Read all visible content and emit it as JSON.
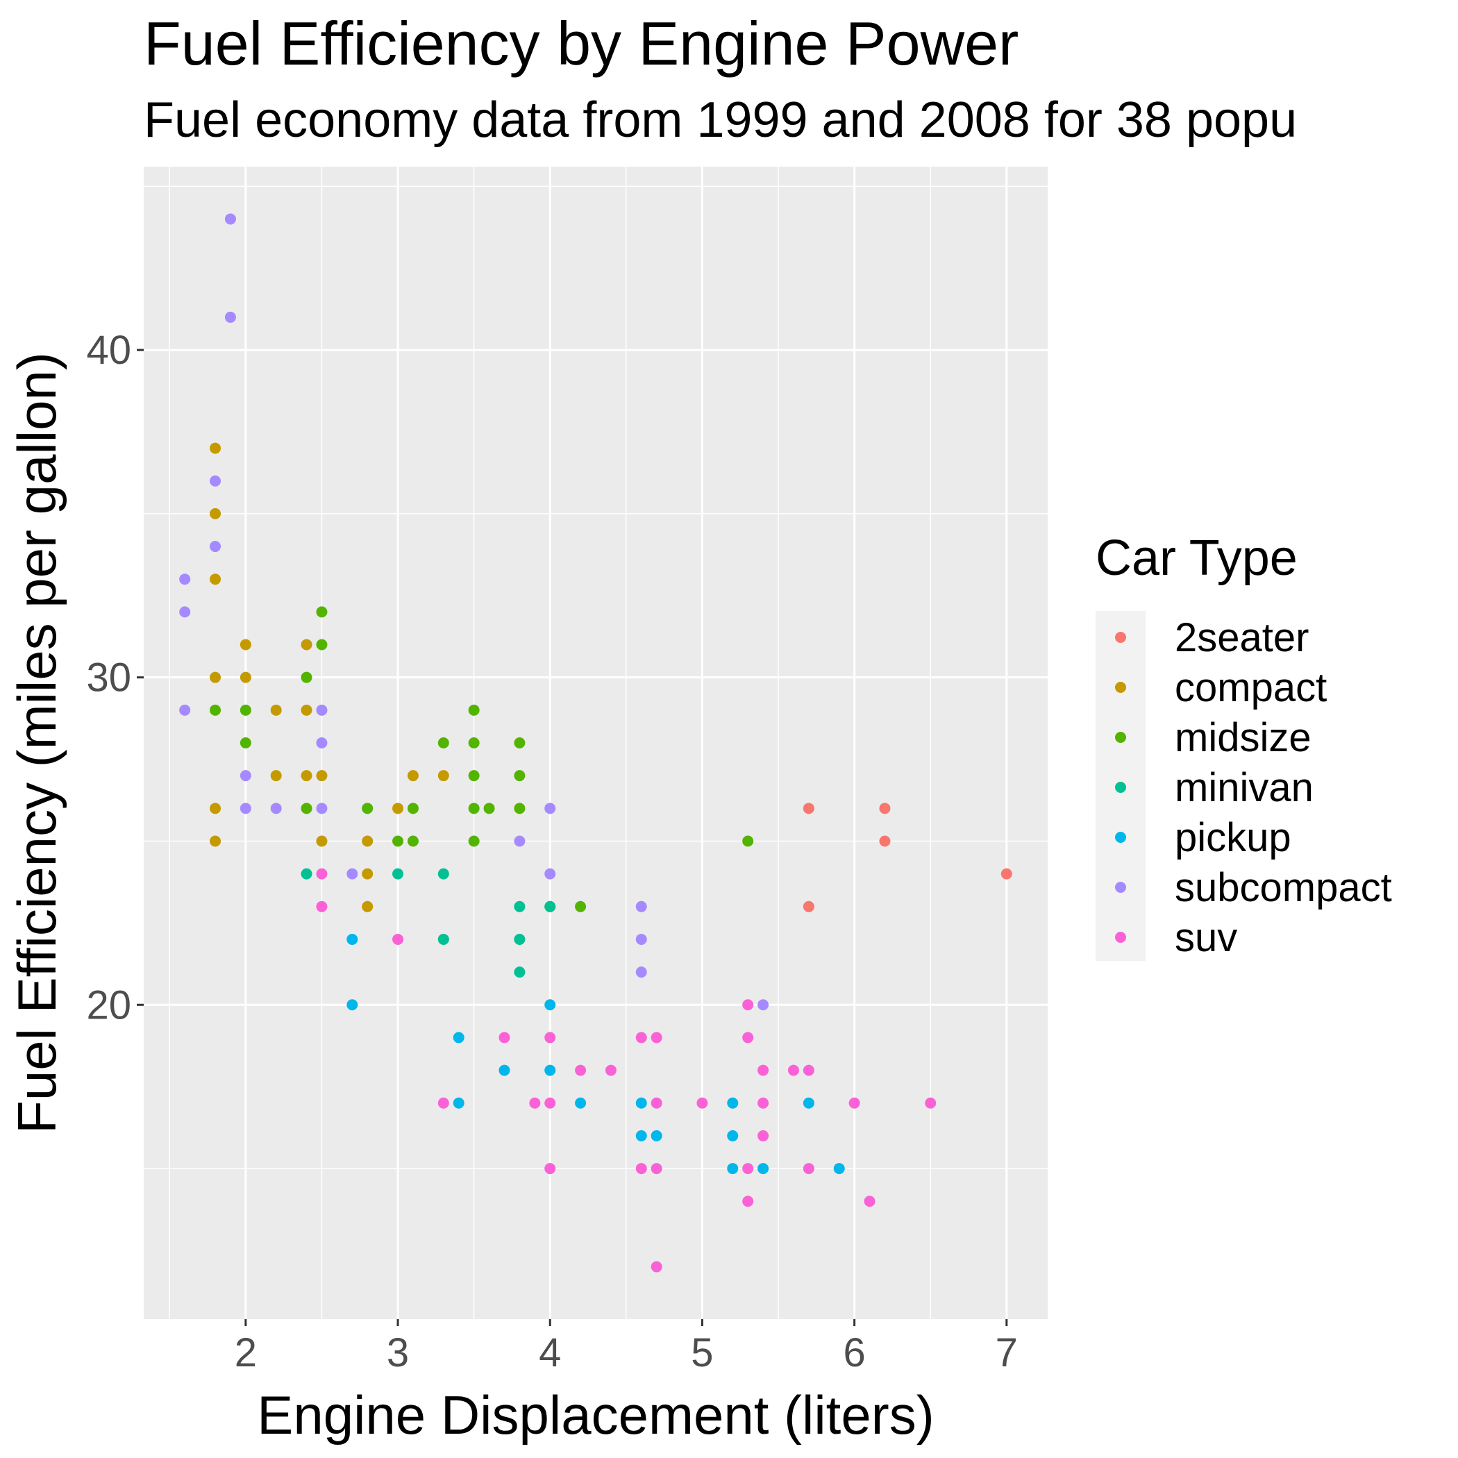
{
  "chart_data": {
    "type": "scatter",
    "title": "Fuel Efficiency by Engine Power",
    "subtitle": "Fuel economy data from 1999 and 2008 for 38 popu",
    "xlabel": "Engine Displacement (liters)",
    "ylabel": "Fuel Efficiency (miles per gallon)",
    "xlim": [
      1.33,
      7.27
    ],
    "ylim": [
      10.4,
      45.6
    ],
    "x_ticks": [
      2,
      3,
      4,
      5,
      6,
      7
    ],
    "y_ticks": [
      20,
      30,
      40
    ],
    "grid": true,
    "legend_title": "Car Type",
    "legend_position": "right",
    "series": [
      {
        "name": "2seater",
        "color": "#F8766D",
        "points": [
          [
            5.7,
            26
          ],
          [
            5.7,
            23
          ],
          [
            6.2,
            26
          ],
          [
            6.2,
            25
          ],
          [
            7.0,
            24
          ]
        ]
      },
      {
        "name": "compact",
        "color": "#C49A00",
        "points": [
          [
            1.8,
            37
          ],
          [
            1.8,
            35
          ],
          [
            1.8,
            33
          ],
          [
            1.8,
            30
          ],
          [
            1.8,
            26
          ],
          [
            1.8,
            25
          ],
          [
            2.0,
            31
          ],
          [
            2.0,
            30
          ],
          [
            2.2,
            29
          ],
          [
            2.2,
            27
          ],
          [
            2.4,
            31
          ],
          [
            2.4,
            29
          ],
          [
            2.4,
            27
          ],
          [
            2.5,
            27
          ],
          [
            2.5,
            25
          ],
          [
            2.8,
            25
          ],
          [
            2.8,
            24
          ],
          [
            2.8,
            23
          ],
          [
            3.0,
            26
          ],
          [
            3.1,
            27
          ],
          [
            3.3,
            27
          ]
        ]
      },
      {
        "name": "midsize",
        "color": "#53B400",
        "points": [
          [
            1.8,
            29
          ],
          [
            2.0,
            29
          ],
          [
            2.0,
            28
          ],
          [
            2.4,
            30
          ],
          [
            2.4,
            26
          ],
          [
            2.5,
            32
          ],
          [
            2.5,
            31
          ],
          [
            2.8,
            26
          ],
          [
            3.0,
            25
          ],
          [
            3.1,
            26
          ],
          [
            3.1,
            25
          ],
          [
            3.3,
            28
          ],
          [
            3.5,
            29
          ],
          [
            3.5,
            28
          ],
          [
            3.5,
            27
          ],
          [
            3.5,
            26
          ],
          [
            3.5,
            25
          ],
          [
            3.6,
            26
          ],
          [
            3.8,
            28
          ],
          [
            3.8,
            27
          ],
          [
            3.8,
            26
          ],
          [
            4.0,
            23
          ],
          [
            4.2,
            23
          ],
          [
            5.3,
            25
          ]
        ]
      },
      {
        "name": "minivan",
        "color": "#00C094",
        "points": [
          [
            2.4,
            24
          ],
          [
            3.0,
            24
          ],
          [
            3.3,
            24
          ],
          [
            3.3,
            22
          ],
          [
            3.8,
            23
          ],
          [
            3.8,
            22
          ],
          [
            3.8,
            21
          ],
          [
            4.0,
            23
          ]
        ]
      },
      {
        "name": "pickup",
        "color": "#00B6EB",
        "points": [
          [
            2.7,
            22
          ],
          [
            2.7,
            20
          ],
          [
            3.4,
            19
          ],
          [
            3.4,
            17
          ],
          [
            3.7,
            18
          ],
          [
            4.0,
            20
          ],
          [
            4.0,
            18
          ],
          [
            4.2,
            17
          ],
          [
            4.6,
            17
          ],
          [
            4.6,
            16
          ],
          [
            4.7,
            16
          ],
          [
            5.2,
            17
          ],
          [
            5.2,
            16
          ],
          [
            5.2,
            15
          ],
          [
            5.4,
            15
          ],
          [
            5.7,
            17
          ],
          [
            5.9,
            15
          ]
        ]
      },
      {
        "name": "subcompact",
        "color": "#A58AFF",
        "points": [
          [
            1.6,
            33
          ],
          [
            1.6,
            32
          ],
          [
            1.6,
            29
          ],
          [
            1.8,
            36
          ],
          [
            1.8,
            34
          ],
          [
            1.9,
            44
          ],
          [
            1.9,
            41
          ],
          [
            2.0,
            27
          ],
          [
            2.0,
            26
          ],
          [
            2.2,
            26
          ],
          [
            2.5,
            29
          ],
          [
            2.5,
            28
          ],
          [
            2.5,
            26
          ],
          [
            2.7,
            24
          ],
          [
            3.8,
            25
          ],
          [
            4.0,
            26
          ],
          [
            4.0,
            24
          ],
          [
            4.6,
            23
          ],
          [
            4.6,
            22
          ],
          [
            4.6,
            21
          ],
          [
            5.4,
            20
          ]
        ]
      },
      {
        "name": "suv",
        "color": "#FB61D7",
        "points": [
          [
            2.5,
            24
          ],
          [
            2.5,
            23
          ],
          [
            3.0,
            22
          ],
          [
            3.3,
            17
          ],
          [
            3.7,
            19
          ],
          [
            3.9,
            17
          ],
          [
            4.0,
            19
          ],
          [
            4.0,
            17
          ],
          [
            4.0,
            15
          ],
          [
            4.2,
            18
          ],
          [
            4.4,
            18
          ],
          [
            4.6,
            19
          ],
          [
            4.6,
            15
          ],
          [
            4.7,
            19
          ],
          [
            4.7,
            17
          ],
          [
            4.7,
            15
          ],
          [
            4.7,
            12
          ],
          [
            5.0,
            17
          ],
          [
            5.3,
            20
          ],
          [
            5.3,
            19
          ],
          [
            5.3,
            15
          ],
          [
            5.3,
            14
          ],
          [
            5.4,
            18
          ],
          [
            5.4,
            17
          ],
          [
            5.4,
            16
          ],
          [
            5.6,
            18
          ],
          [
            5.7,
            18
          ],
          [
            5.7,
            15
          ],
          [
            6.0,
            17
          ],
          [
            6.1,
            14
          ],
          [
            6.5,
            17
          ]
        ]
      }
    ]
  }
}
